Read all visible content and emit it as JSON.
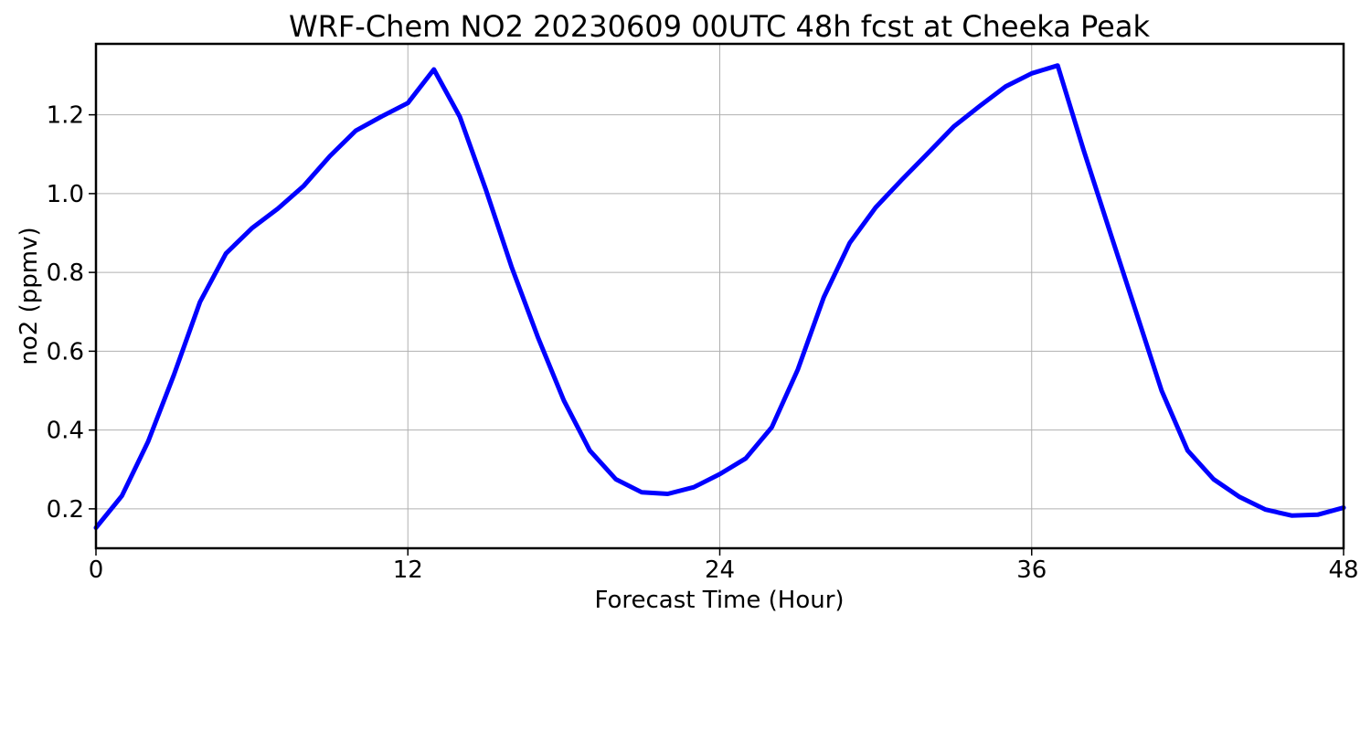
{
  "chart_data": {
    "type": "line",
    "title": "WRF-Chem NO2  20230609 00UTC 48h fcst at Cheeka Peak",
    "xlabel": "Forecast Time (Hour)",
    "ylabel": "no2  (ppmv)",
    "xlim": [
      0,
      48
    ],
    "ylim": [
      0.1,
      1.38
    ],
    "x_ticks": [
      0,
      12,
      24,
      36,
      48
    ],
    "x_tick_labels": [
      "0",
      "12",
      "24",
      "36",
      "48"
    ],
    "y_ticks": [
      0.2,
      0.4,
      0.6,
      0.8,
      1.0,
      1.2
    ],
    "y_tick_labels": [
      "0.2",
      "0.4",
      "0.6",
      "0.8",
      "1.0",
      "1.2"
    ],
    "grid": true,
    "legend": "none",
    "series": [
      {
        "color": "#0000ff",
        "x": [
          0,
          1,
          2,
          3,
          4,
          5,
          6,
          7,
          8,
          9,
          10,
          11,
          12,
          13,
          14,
          15,
          16,
          17,
          18,
          19,
          20,
          21,
          22,
          23,
          24,
          25,
          26,
          27,
          28,
          29,
          30,
          31,
          32,
          33,
          34,
          35,
          36,
          37,
          38,
          39,
          40,
          41,
          42,
          43,
          44,
          45,
          46,
          47,
          48
        ],
        "values": [
          0.152,
          0.233,
          0.37,
          0.54,
          0.725,
          0.848,
          0.912,
          0.962,
          1.02,
          1.095,
          1.16,
          1.196,
          1.23,
          1.315,
          1.195,
          1.01,
          0.812,
          0.636,
          0.475,
          0.348,
          0.275,
          0.242,
          0.238,
          0.255,
          0.288,
          0.328,
          0.407,
          0.553,
          0.737,
          0.875,
          0.965,
          1.035,
          1.102,
          1.17,
          1.222,
          1.272,
          1.305,
          1.325,
          1.11,
          0.905,
          0.703,
          0.5,
          0.348,
          0.275,
          0.23,
          0.198,
          0.183,
          0.185,
          0.203
        ]
      }
    ]
  }
}
